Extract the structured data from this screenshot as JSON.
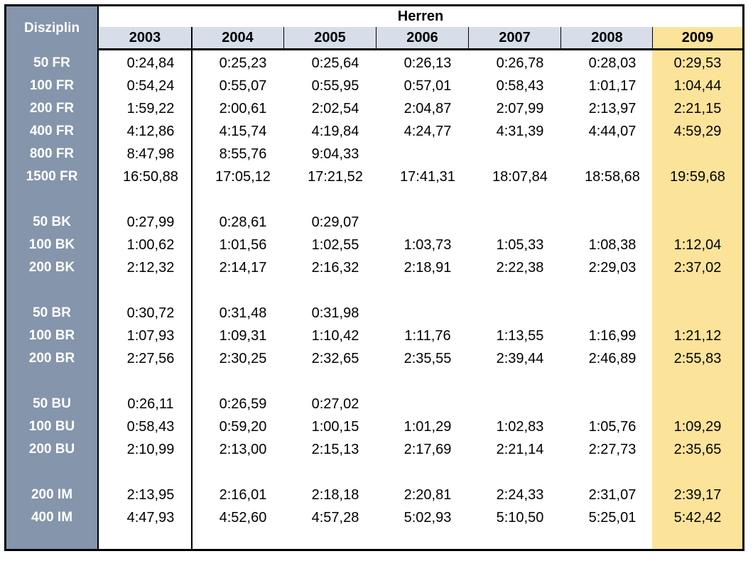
{
  "table": {
    "disc_header": "Disziplin",
    "group_header": "Herren",
    "years": [
      "2003",
      "2004",
      "2005",
      "2006",
      "2007",
      "2008",
      "2009"
    ],
    "highlight_color": "#fce39a",
    "header_color": "#d7deea",
    "disc_color": "#8595ab",
    "rows": [
      {
        "disc": "50 FR",
        "times": [
          "0:24,84",
          "0:25,23",
          "0:25,64",
          "0:26,13",
          "0:26,78",
          "0:28,03",
          "0:29,53"
        ]
      },
      {
        "disc": "100 FR",
        "times": [
          "0:54,24",
          "0:55,07",
          "0:55,95",
          "0:57,01",
          "0:58,43",
          "1:01,17",
          "1:04,44"
        ]
      },
      {
        "disc": "200 FR",
        "times": [
          "1:59,22",
          "2:00,61",
          "2:02,54",
          "2:04,87",
          "2:07,99",
          "2:13,97",
          "2:21,15"
        ]
      },
      {
        "disc": "400 FR",
        "times": [
          "4:12,86",
          "4:15,74",
          "4:19,84",
          "4:24,77",
          "4:31,39",
          "4:44,07",
          "4:59,29"
        ]
      },
      {
        "disc": "800 FR",
        "times": [
          "8:47,98",
          "8:55,76",
          "9:04,33",
          "",
          "",
          "",
          ""
        ]
      },
      {
        "disc": "1500 FR",
        "times": [
          "16:50,88",
          "17:05,12",
          "17:21,52",
          "17:41,31",
          "18:07,84",
          "18:58,68",
          "19:59,68"
        ]
      },
      {
        "disc": "",
        "times": [
          "",
          "",
          "",
          "",
          "",
          "",
          ""
        ]
      },
      {
        "disc": "50 BK",
        "times": [
          "0:27,99",
          "0:28,61",
          "0:29,07",
          "",
          "",
          "",
          ""
        ]
      },
      {
        "disc": "100 BK",
        "times": [
          "1:00,62",
          "1:01,56",
          "1:02,55",
          "1:03,73",
          "1:05,33",
          "1:08,38",
          "1:12,04"
        ]
      },
      {
        "disc": "200 BK",
        "times": [
          "2:12,32",
          "2:14,17",
          "2:16,32",
          "2:18,91",
          "2:22,38",
          "2:29,03",
          "2:37,02"
        ]
      },
      {
        "disc": "",
        "times": [
          "",
          "",
          "",
          "",
          "",
          "",
          ""
        ]
      },
      {
        "disc": "50 BR",
        "times": [
          "0:30,72",
          "0:31,48",
          "0:31,98",
          "",
          "",
          "",
          ""
        ]
      },
      {
        "disc": "100 BR",
        "times": [
          "1:07,93",
          "1:09,31",
          "1:10,42",
          "1:11,76",
          "1:13,55",
          "1:16,99",
          "1:21,12"
        ]
      },
      {
        "disc": "200 BR",
        "times": [
          "2:27,56",
          "2:30,25",
          "2:32,65",
          "2:35,55",
          "2:39,44",
          "2:46,89",
          "2:55,83"
        ]
      },
      {
        "disc": "",
        "times": [
          "",
          "",
          "",
          "",
          "",
          "",
          ""
        ]
      },
      {
        "disc": "50 BU",
        "times": [
          "0:26,11",
          "0:26,59",
          "0:27,02",
          "",
          "",
          "",
          ""
        ]
      },
      {
        "disc": "100 BU",
        "times": [
          "0:58,43",
          "0:59,20",
          "1:00,15",
          "1:01,29",
          "1:02,83",
          "1:05,76",
          "1:09,29"
        ]
      },
      {
        "disc": "200 BU",
        "times": [
          "2:10,99",
          "2:13,00",
          "2:15,13",
          "2:17,69",
          "2:21,14",
          "2:27,73",
          "2:35,65"
        ]
      },
      {
        "disc": "",
        "times": [
          "",
          "",
          "",
          "",
          "",
          "",
          ""
        ]
      },
      {
        "disc": "200 IM",
        "times": [
          "2:13,95",
          "2:16,01",
          "2:18,18",
          "2:20,81",
          "2:24,33",
          "2:31,07",
          "2:39,17"
        ]
      },
      {
        "disc": "400 IM",
        "times": [
          "4:47,93",
          "4:52,60",
          "4:57,28",
          "5:02,93",
          "5:10,50",
          "5:25,01",
          "5:42,42"
        ]
      }
    ]
  }
}
